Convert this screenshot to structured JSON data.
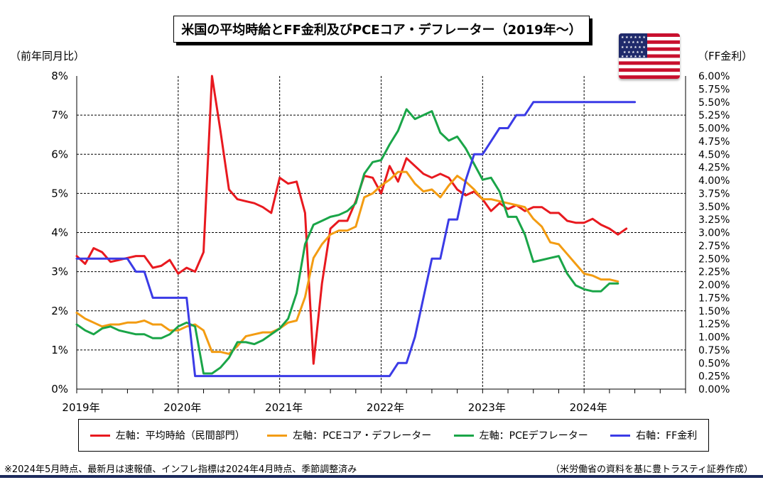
{
  "title": "米国の平均時給とFF金利及びPCEコア・デフレーター（2019年～）",
  "left_axis_unit": "（前年同月比）",
  "right_axis_unit": "（FF金利）",
  "footnote": "※2024年5月時点、最新月は速報値、インフレ指標は2024年4月時点、季節調整済み",
  "source": "（米労働省の資料を基に豊トラスティ証券作成）",
  "flag_icon": "us-flag-icon",
  "chart_data": {
    "type": "line",
    "x_categories": [
      "2019年",
      "2020年",
      "2021年",
      "2022年",
      "2023年",
      "2024年"
    ],
    "y_left": {
      "min": 0,
      "max": 8,
      "ticks": [
        "0%",
        "1%",
        "2%",
        "3%",
        "4%",
        "5%",
        "6%",
        "7%",
        "8%"
      ]
    },
    "y_right": {
      "min": 0,
      "max": 6,
      "ticks": [
        "0.00%",
        "0.25%",
        "0.50%",
        "0.75%",
        "1.00%",
        "1.25%",
        "1.50%",
        "1.75%",
        "2.00%",
        "2.25%",
        "2.50%",
        "2.75%",
        "3.00%",
        "3.25%",
        "3.50%",
        "3.75%",
        "4.00%",
        "4.25%",
        "4.50%",
        "4.75%",
        "5.00%",
        "5.25%",
        "5.50%",
        "5.75%",
        "6.00%"
      ]
    },
    "grid": true,
    "legend_position": "bottom",
    "series": [
      {
        "name": "左軸：平均時給（民間部門）",
        "axis": "left",
        "color": "#e8191f",
        "start": "2019-01",
        "values": [
          3.4,
          3.2,
          3.6,
          3.5,
          3.25,
          3.3,
          3.35,
          3.4,
          3.4,
          3.1,
          3.15,
          3.3,
          2.95,
          3.1,
          3.0,
          3.5,
          8.0,
          6.6,
          5.1,
          4.85,
          4.8,
          4.75,
          4.65,
          4.5,
          5.4,
          5.25,
          5.3,
          4.5,
          0.65,
          2.7,
          4.1,
          4.3,
          4.3,
          4.8,
          5.45,
          5.4,
          5.0,
          5.7,
          5.3,
          5.9,
          5.7,
          5.5,
          5.4,
          5.5,
          5.4,
          5.1,
          4.95,
          5.05,
          4.85,
          4.55,
          4.75,
          4.6,
          4.7,
          4.55,
          4.65,
          4.65,
          4.5,
          4.5,
          4.3,
          4.25,
          4.25,
          4.35,
          4.2,
          4.1,
          3.95,
          4.1
        ]
      },
      {
        "name": "左軸：PCEコア・デフレーター",
        "axis": "left",
        "color": "#f39c12",
        "start": "2019-01",
        "values": [
          1.95,
          1.8,
          1.7,
          1.6,
          1.65,
          1.65,
          1.7,
          1.7,
          1.75,
          1.65,
          1.65,
          1.5,
          1.5,
          1.6,
          1.65,
          1.5,
          0.95,
          0.95,
          0.9,
          1.1,
          1.35,
          1.4,
          1.45,
          1.45,
          1.55,
          1.7,
          1.75,
          2.35,
          3.35,
          3.7,
          3.95,
          4.05,
          4.05,
          4.15,
          4.9,
          5.0,
          5.2,
          5.35,
          5.55,
          5.55,
          5.25,
          5.05,
          5.1,
          4.9,
          5.2,
          5.45,
          5.3,
          5.1,
          4.85,
          4.85,
          4.8,
          4.75,
          4.7,
          4.65,
          4.35,
          4.15,
          3.75,
          3.7,
          3.45,
          3.2,
          2.95,
          2.9,
          2.8,
          2.8,
          2.75
        ]
      },
      {
        "name": "左軸：PCEデフレーター",
        "axis": "left",
        "color": "#1aa548",
        "start": "2019-01",
        "values": [
          1.65,
          1.5,
          1.4,
          1.55,
          1.6,
          1.5,
          1.45,
          1.4,
          1.4,
          1.3,
          1.3,
          1.4,
          1.6,
          1.7,
          1.6,
          0.4,
          0.4,
          0.55,
          0.8,
          1.2,
          1.2,
          1.15,
          1.25,
          1.4,
          1.55,
          1.8,
          2.45,
          3.7,
          4.2,
          4.3,
          4.4,
          4.45,
          4.55,
          4.75,
          5.5,
          5.8,
          5.85,
          6.25,
          6.6,
          7.15,
          6.9,
          7.0,
          7.1,
          6.55,
          6.35,
          6.45,
          6.15,
          5.75,
          5.35,
          5.4,
          5.05,
          4.4,
          4.4,
          3.95,
          3.25,
          3.3,
          3.35,
          3.4,
          2.95,
          2.65,
          2.55,
          2.5,
          2.5,
          2.7,
          2.7
        ]
      },
      {
        "name": "右軸：FF金利",
        "axis": "right",
        "color": "#3b3be6",
        "start": "2019-01",
        "values": [
          2.5,
          2.5,
          2.5,
          2.5,
          2.5,
          2.5,
          2.5,
          2.25,
          2.25,
          1.75,
          1.75,
          1.75,
          1.75,
          1.75,
          0.25,
          0.25,
          0.25,
          0.25,
          0.25,
          0.25,
          0.25,
          0.25,
          0.25,
          0.25,
          0.25,
          0.25,
          0.25,
          0.25,
          0.25,
          0.25,
          0.25,
          0.25,
          0.25,
          0.25,
          0.25,
          0.25,
          0.25,
          0.25,
          0.5,
          0.5,
          1.0,
          1.75,
          2.5,
          2.5,
          3.25,
          3.25,
          4.0,
          4.5,
          4.5,
          4.75,
          5.0,
          5.0,
          5.25,
          5.25,
          5.5,
          5.5,
          5.5,
          5.5,
          5.5,
          5.5,
          5.5,
          5.5,
          5.5,
          5.5,
          5.5,
          5.5,
          5.5
        ]
      }
    ]
  }
}
